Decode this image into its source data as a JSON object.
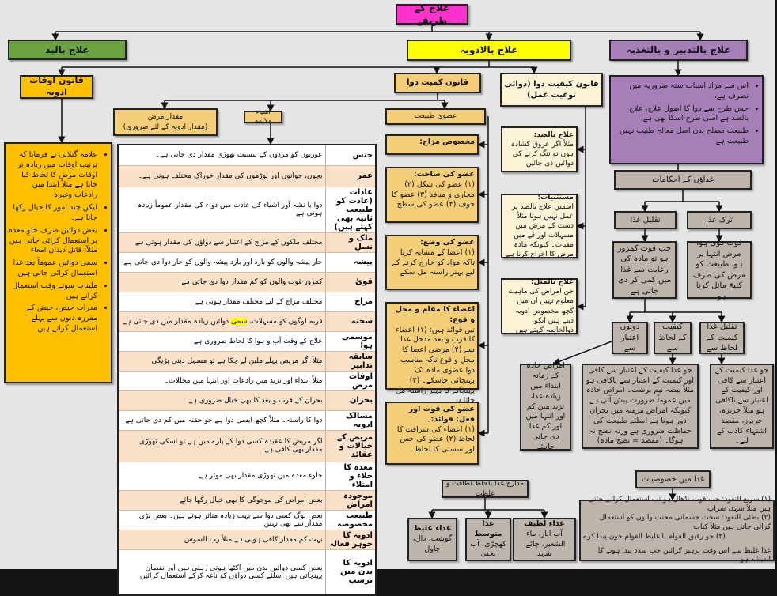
{
  "title": "علاج کے طریقے",
  "branches": {
    "hand": "علاج بالید",
    "drug": "علاج بالادویہ",
    "regimen": "علاج بالتدبیر و بالتغذیہ"
  },
  "timing": {
    "title": "قانون اوقات ادویہ",
    "bullets": [
      "علامہ گیلانی نے فرمایا کہ ترتیب اوقات میں زیادہ تر اوقات مرض کا لحاظ کیا جاتا ہے مثلاً ابتدا میں رادعات وغیرہ",
      "لیکن چند امور کا خیال رکھا جاتا ہے۔",
      "بعض دوائیں صرف خلوِ معدہ پر استعمال کرائی جاتی ہیں مثلاً: قاتل دیدان امعاء",
      "سمی دوائیں عموماً بعد غذا استعمال کرائی جاتی ہیں",
      "ملینات سوتے وقت استعمال کراتے ہیں",
      "مدرات حیض، حیض کے مقررہ دنوں سے پہلے استعمال کراتے ہیں"
    ]
  },
  "quantity": {
    "title": "قانون کمیت دوا",
    "disease_amount": "مقدار مرض",
    "disease_amount_sub": "(مقدار ادویہ کے لئے ضروری)",
    "suitable": "اشیاء ملائمہ",
    "organ_nature": "عضوی طبیعت",
    "organ_items": [
      {
        "head": "مخصوص مزاج:",
        "text": ""
      },
      {
        "head": "عضو کی ساخت:",
        "text": "(۱) عضو کی شکل (۲) مجاری و منافذ (۳) عضو کا جوف (۴) عضو کی سطح"
      },
      {
        "head": "عضو کی وضع:",
        "text": "(۱) اعضا کے مشابہ کرنا تاکہ مواد کو خارج کرنے کے لیے بہتر راستہ مل سکے"
      },
      {
        "head": "اعضاء کا مقام و محل و قوع:",
        "text": "تین فوائد ہیں: (۱) اعضاء کا قرب و بعد مدخل غذا سے (۲) مرضی اعضا کا محل و قوع تاکہ مناسب دوا عضوی مادہ تک پہنچائی جاسکے۔ (۳) پہنچانے کا بہتر راستہ مل جاتا ہے"
      },
      {
        "head": "عضو کی قوت اور فعل: فوائد:۔",
        "text": "(۱) اعضاء کی شرافت کا لحاظ (۲) عضو کی حس اور سستی کا لحاظ"
      }
    ],
    "table": [
      [
        "جنس",
        "عورتوں کو مردوں کے بنسبت تھوڑی مقدار دی جاتی ہے۔"
      ],
      [
        "عمر",
        "بچوں، جوانوں اور بوڑھوں کی مقدار خوراک مختلف ہوتی ہے۔"
      ],
      [
        "عادات (عادت کو طبیعت ثانیہ بھی کہتے ہیں)",
        "دوا یا نشہ آور اشیاء کی عادت میں دواء کی مقدار عموماً زیادہ ہوتی ہے"
      ],
      [
        "ملک و نسل",
        "مختلف ملکوں کے مزاج کے اعتبار سے دواؤں کی مقدار ہوتی ہے"
      ],
      [
        "پیشہ",
        "حار پیشہ والوں کو بارد اور بارد پیشہ والوں کو حار دوا دی جاتی ہے"
      ],
      [
        "قویٰ",
        "کمزور قوت والوں کو کم مقدار دوا دی جاتی ہے"
      ],
      [
        "مزاج",
        "مختلف مزاج کے لیے مختلف مقدار ہوتی ہے"
      ],
      [
        "سحنہ",
        "فربہ لوگوں کو مسہلات، |سمی| دوائیں زیادہ مقدار میں دی جاتی ہے"
      ],
      [
        "موسمی ہوا",
        "علاج کے وقت آب و ہوا کا لحاظ ضروری ہے"
      ],
      [
        "سابقہ تدابیر",
        "مثلاً اگر مریض پہلے ملین لے چکا ہے تو مسہل دینی پڑیگی"
      ],
      [
        "اوقات مرض",
        "مثلاً ابتداء اور تزید میں رادعات اور انتہا میں محللات۔"
      ],
      [
        "بحران",
        "بحران کے قرب و بعد کا بھی خیال ضروری ہے"
      ],
      [
        "مسالک ادویہ",
        "دوا کا راستہ۔ مثلاً کچھ ایسی دوا ہے جو حقنہ میں کم دی جاتی ہے"
      ],
      [
        "مریض کے خیالات و عقائد",
        "اگر مریض کا عقیدہ کسی دوا کے بارے میں ہے تو اسکی تھوڑی مقدار بھی کافی ہے"
      ],
      [
        "معدہ کا خلاء و امتلاء",
        "خلوء معدہ میں تھوڑی مقدار بھی موثر ہے"
      ],
      [
        "موجودہ امراض",
        "بعض امراض کی موجوگی کا بھی خیال رکھا جائے"
      ],
      [
        "طبیعت مخصوصہ",
        "بعض لوگ کسی دوا سے بہت زیادہ متاثر ہوتے ہیں۔ بعض بڑی مقدار سے بھی نہیں"
      ],
      [
        "ادویہ کا جوہر فعالہ",
        "بہت کم مقدار کافی ہوتی ہے مثلاً رب السوس"
      ],
      [
        "ادویہ کا بدن میں ترسب",
        "بعض کسی دوائیں بدن میں اکٹھا ہوتی رہتی ہیں اور نقصان پہنچاتی ہیں اسلئے کسی دواؤں کو ناغہ کرکے استعمال کرائیں"
      ]
    ]
  },
  "quality": {
    "title": "قانون کیفیت دوا (دوائی نوعیت عمل)",
    "items": [
      {
        "head": "علاج بالضد:",
        "text": "مثلاً اگر عروق کشادہ ہوں تو تنگ کرنے کی دوائیں دی جائیں"
      },
      {
        "head": "مستثنیات:",
        "text": "اسمیں علاج بالضد پر عمل نہیں ہوتا مثلاً دست کے مرض میں مسہلات اور قے میں مقیات۔ کیونکہ مادہ مرض کا اخراج کرنا ہے"
      },
      {
        "head": "علاج بالمثل:",
        "text": "جن امراض کی ماہیت معلوم نہیں ان میں کچھ مخصوص ادویہ دیتے ہیں انکو ذوالخاصہ کہتے ہیں"
      }
    ]
  },
  "regimen": {
    "bullets": [
      "اس سے مراد اسباب ستہ ضروریہ میں تصرف ہے،",
      "جس طرح سے دوا کا اصول علاج، علاج بالضد ہے اسی طرح اسکا بھی ہے،",
      "طبیعت مصلح بدن اصل معالج طبیب نہیں طبیعت ہے"
    ],
    "food_rules": "غذاؤں کے احکامات",
    "reduce": "تقلیل غذا",
    "stop": "ترک غذا",
    "reduce_text": "جب قوت کمزور ہو تو مادہ کی رعایت سے غذا میں کمی کر دی جاتی ہے",
    "stop_text": "قوت قوی ہو، مرض انتہا پر ہو، طبیعت کو مرض کی طرف کلیۃً مائل کرنا ہو۔",
    "both": "دونوں اعتبار سے",
    "by_quality": "کیفیت کے لحاظ سے",
    "by_quantity": "تقلیل غذا کیمیت کے لحاظ سے",
    "acute_text": "امراض حادہ کے زمانہ ابتداء میں زیادہ غذا، تزید میں کم اور انتہا میں اور کم غذا دی جانی چاہئے",
    "quality_text": "جو غذا کیفیت کے اعتبار سے کافی اور کیمیت کے اعتبار سے ناکافی ہو مثلاً بیضہ نیم برشت۔ امراض حادہ میں عموماً ضرورت پیش آتی ہے کیونکہ امراض مزمنہ میں بحران دور ہوتا ہے اسلئے طبیعت کی حفاظت ضروری ہے ورنہ نضج نہ ہوگا۔ (مقصد = نضج مادہ)",
    "quantity_text": "جو غذا کیمیت کے اعتبار سے کافی اور کیفیت کے اعتبار سے ناکافی ہو مثلاً خربزہ، خربوز، مقصد اشتہاء کاذب کے لیے۔",
    "grades": "مدارج غذا بلحاظ لطافت و غلظت",
    "grade_items": [
      {
        "head": "غذاء لطیف",
        "text": "آب انار، ماء الشعیر، چائے، شہد"
      },
      {
        "head": "غذا متوسط",
        "text": "کھچڑی، آب یخنی"
      },
      {
        "head": "غذاء غلیظ",
        "text": "گوشت، دال، چاول"
      }
    ],
    "features": "غذا میں خصوصیات",
    "feature_lines": [
      "(۱) سریع النفوذ: جب قوت نڈھال ہو تب استعمال کرائی جاتی ہیں مثلاً شہد، شراب",
      "(۲) بطئی النفوذ: سخت جسمانی محنت والوں کو استعمال کرائی جاتی ہیں مثلاً کباب",
      "(۳) جو رقیق القوام یا غلیظ القوام خون پیدا کرے",
      "غذا غلیظ سے اس وقت پرہیز کرائیں جب سدد پیدا ہونے کا اندیشہ ہو"
    ]
  },
  "colors": {
    "title": "#ff33cc",
    "hand": "#6aa33f",
    "drug": "#ffff00",
    "regimen": "#a77fb8",
    "timing": "#ffc000",
    "tan": "#f4cd79",
    "cream": "#fdf2d6",
    "gray": "#bdb5ac",
    "highlight": "#ffff00"
  }
}
